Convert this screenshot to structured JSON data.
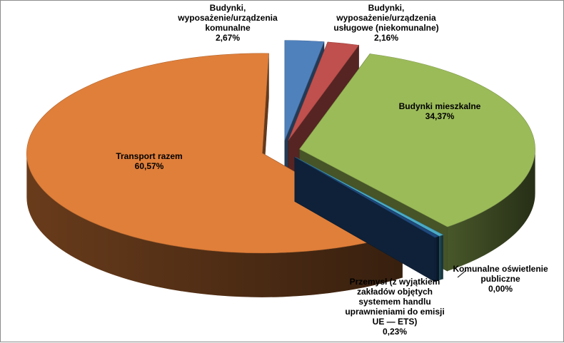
{
  "chart_data": {
    "type": "pie",
    "style": "3d-exploded",
    "title": "",
    "legend": "none",
    "slices": [
      {
        "label": "Budynki, wyposażenie/urządzenia komunalne",
        "value": 2.67,
        "value_label": "2,67%",
        "color": "#4f81bd",
        "label_lines": [
          "Budynki,",
          "wyposażenie/urządzenia",
          "komunalne",
          "2,67%"
        ]
      },
      {
        "label": "Budynki, wyposażenie/urządzenia usługowe (niekomunalne)",
        "value": 2.16,
        "value_label": "2,16%",
        "color": "#c0504d",
        "label_lines": [
          "Budynki,",
          "wyposażenie/urządzenia",
          "usługowe (niekomunalne)",
          "2,16%"
        ]
      },
      {
        "label": "Budynki mieszkalne",
        "value": 34.37,
        "value_label": "34,37%",
        "color": "#9bbb59",
        "label_lines": [
          "Budynki mieszkalne",
          "34,37%"
        ]
      },
      {
        "label": "Komunalne oświetlenie publiczne",
        "value": 0.0,
        "value_label": "0,00%",
        "color": "#4bacc6",
        "label_lines": [
          "Komunalne oświetlenie",
          "publiczne",
          "0,00%"
        ]
      },
      {
        "label": "Przemysł (z wyjątkiem zakładów objętych systemem handlu uprawnieniami do emisji UE — ETS)",
        "value": 0.23,
        "value_label": "0,23%",
        "color": "#1f497d",
        "label_lines": [
          "Przemysł (z wyjątkiem",
          "zakładów objętych",
          "systemem handlu",
          "uprawnieniami do emisji",
          "UE — ETS)",
          "0,23%"
        ]
      },
      {
        "label": "Transport razem",
        "value": 60.57,
        "value_label": "60,57%",
        "color": "#e07f3a",
        "label_lines": [
          "Transport razem",
          "60,57%"
        ]
      }
    ]
  }
}
